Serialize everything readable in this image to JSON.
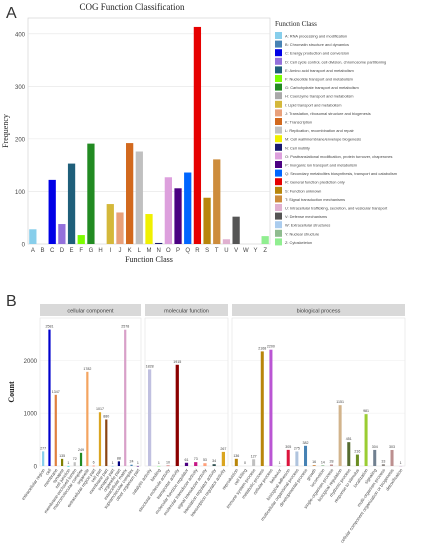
{
  "panels": {
    "a_letter": "A",
    "b_letter": "B"
  },
  "chart_data": [
    {
      "type": "bar",
      "title": "COG Function Classification",
      "xlabel": "Function Class",
      "ylabel": "Frequency",
      "ylim": [
        0,
        430
      ],
      "yticks": [
        0,
        100,
        200,
        300,
        400
      ],
      "grid": true,
      "legend_title": "Function Class",
      "legend_position": "right",
      "categories": [
        "A",
        "B",
        "C",
        "D",
        "E",
        "F",
        "G",
        "H",
        "I",
        "J",
        "K",
        "L",
        "M",
        "N",
        "O",
        "P",
        "Q",
        "R",
        "S",
        "T",
        "U",
        "V",
        "W",
        "Y",
        "Z"
      ],
      "values": [
        28,
        0,
        122,
        38,
        153,
        17,
        191,
        0,
        76,
        60,
        192,
        176,
        57,
        2,
        127,
        106,
        136,
        413,
        88,
        161,
        9,
        52,
        0,
        0,
        15
      ],
      "colors": [
        "#87ceeb",
        "#4682b4",
        "#0000e6",
        "#9370db",
        "#1f5f7a",
        "#7cfc00",
        "#228b22",
        "#a9a9a9",
        "#d4b83a",
        "#e8a07a",
        "#d2691e",
        "#c0c0c0",
        "#f0f000",
        "#191970",
        "#dda0dd",
        "#4b0082",
        "#0066ff",
        "#e60000",
        "#b8860b",
        "#cd8c3c",
        "#e0b0d0",
        "#555555",
        "#aaccee",
        "#8fbc8f",
        "#90ee90"
      ],
      "legend": [
        "A: RNA processing and modification",
        "B: Chromatin structure and dynamics",
        "C: Energy production and conversion",
        "D: Cell cycle control, cell division, chromosome partitioning",
        "E: Amino acid transport and metabolism",
        "F: Nucleotide transport and metabolism",
        "G: Carbohydrate transport and metabolism",
        "H: Coenzyme transport and metabolism",
        "I: Lipid transport and metabolism",
        "J: Translation, ribosomal structure and biogenesis",
        "K: Transcription",
        "L: Replication, recombination and repair",
        "M: Cell wall/membrane/envelope biogenesis",
        "N: Cell motility",
        "O: Posttranslational modification, protein turnover, chaperones",
        "P: Inorganic ion transport and metabolism",
        "Q: Secondary metabolites biosynthesis, transport and catabolism",
        "R: General function prediction only",
        "S: Function unknown",
        "T: Signal transduction mechanisms",
        "U: Intracellular trafficking, secretion, and vesicular transport",
        "V: Defense mechanisms",
        "W: Extracellular structures",
        "Y: Nuclear structure",
        "Z: Cytoskeleton"
      ]
    },
    {
      "type": "bar",
      "ylabel": "Count",
      "ylim": [
        0,
        2800
      ],
      "yticks": [
        0,
        1000,
        2000
      ],
      "grid": true,
      "facets": [
        {
          "name": "cellular component",
          "categories": [
            "extracellular region",
            "cell",
            "membrane",
            "synapse",
            "cell junction",
            "membrane-enclosed lumen",
            "macromolecular complex",
            "organelle",
            "extracellular region part",
            "cell part",
            "membrane part",
            "synapse part",
            "organelle part",
            "extracellular matrix",
            "supramolecular complex",
            "other organism part"
          ],
          "values": [
            277,
            2581,
            1347,
            135,
            1,
            72,
            249,
            1782,
            6,
            1017,
            880,
            1,
            88,
            2578,
            24,
            1
          ],
          "colors": [
            "#87ceeb",
            "#0000cd",
            "#e08040",
            "#808000",
            "#00ced1",
            "#c0c0c0",
            "#228b22",
            "#f4a460",
            "#ff6347",
            "#daa520",
            "#8b4513",
            "#87ceeb",
            "#000080",
            "#d8a0c8",
            "#4682b4",
            "#4b0082"
          ]
        },
        {
          "name": "molecular function",
          "categories": [
            "catalytic activity",
            "binding",
            "structural molecule activity",
            "transporter activity",
            "molecular function regulator",
            "molecular transducer activity",
            "signal transducer activity",
            "translation regulator activity",
            "transcription regulator activity"
          ],
          "values": [
            1828,
            1,
            10,
            1915,
            61,
            73,
            53,
            34,
            267
          ],
          "colors": [
            "#c0c0e0",
            "#98fb98",
            "#cd5c5c",
            "#8b0000",
            "#4b0082",
            "#c71585",
            "#ffa07a",
            "#2f4f4f",
            "#daa520"
          ]
        },
        {
          "name": "biological process",
          "categories": [
            "reproduction",
            "cell killing",
            "immune system process",
            "metabolic process",
            "cellular process",
            "behavior",
            "biological adhesion",
            "multicellular organismal process",
            "developmental process",
            "growth",
            "locomotion",
            "single-organism process",
            "biological regulation",
            "rhythmic process",
            "response to stimulus",
            "localization",
            "signaling",
            "multi-organism process",
            "cellular component organization or biogenesis",
            "detoxification"
          ],
          "values": [
            136,
            0,
            127,
            2168,
            2200,
            1,
            305,
            275,
            382,
            16,
            14,
            28,
            1151,
            451,
            216,
            981,
            304,
            33,
            303,
            1
          ],
          "colors": [
            "#b8860b",
            "#cd5c5c",
            "#c0c0c0",
            "#b8860b",
            "#ba55d3",
            "#d3d3d3",
            "#dc143c",
            "#b0c4de",
            "#4682b4",
            "#cd853f",
            "#8fbc8f",
            "#bc8f8f",
            "#d2b48c",
            "#556b2f",
            "#6b8e23",
            "#9acd32",
            "#708090",
            "#8b8682",
            "#bc8f8f",
            "#d8bfd8"
          ]
        }
      ],
      "labels_a": [
        "277",
        "2581",
        "1347",
        "135",
        "1",
        "72",
        "249",
        "1782",
        "6",
        "1017",
        "880",
        "1",
        "88",
        "2578",
        "24",
        "1"
      ],
      "labels_b": [
        "1828",
        "1",
        "10",
        "1915",
        "61",
        "73",
        "53",
        "34",
        "267"
      ],
      "labels_c": [
        "136",
        "0",
        "127",
        "2168",
        "2200",
        "1",
        "305",
        "275",
        "382",
        "16",
        "14",
        "28",
        "1151",
        "451",
        "216",
        "981",
        "304",
        "33",
        "303",
        "1"
      ]
    }
  ]
}
